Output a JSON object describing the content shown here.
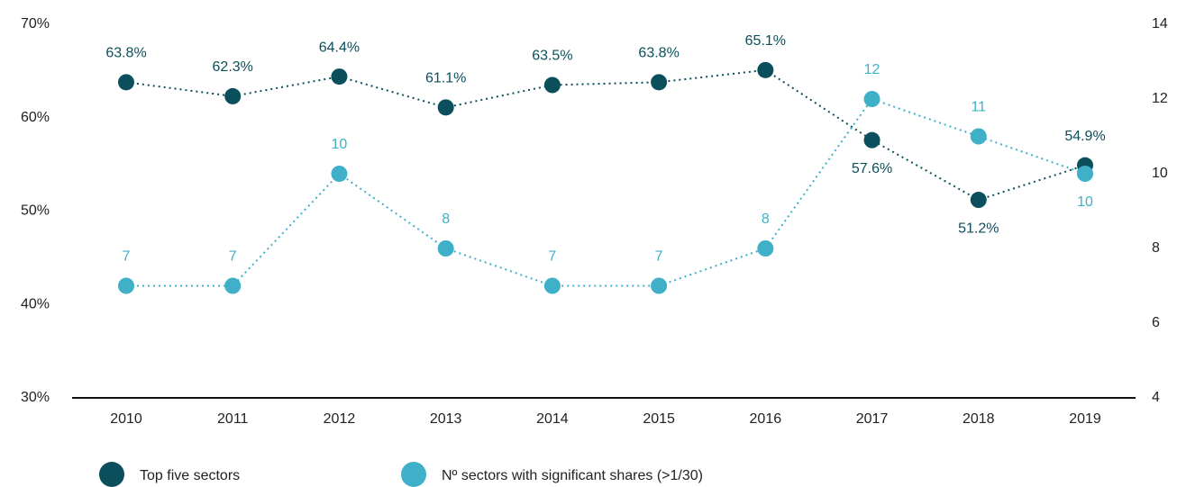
{
  "chart_data": {
    "type": "line",
    "categories": [
      "2010",
      "2011",
      "2012",
      "2013",
      "2014",
      "2015",
      "2016",
      "2017",
      "2018",
      "2019"
    ],
    "series": [
      {
        "name": "Top five sectors",
        "color": "#0b4f5c",
        "values": [
          63.8,
          62.3,
          64.4,
          61.1,
          63.5,
          63.8,
          65.1,
          57.6,
          51.2,
          54.9
        ],
        "value_labels": [
          "63.8%",
          "62.3%",
          "64.4%",
          "61.1%",
          "63.5%",
          "63.8%",
          "65.1%",
          "57.6%",
          "51.2%",
          "54.9%"
        ]
      },
      {
        "name": "Nº sectors with significant shares (>1/30)",
        "color": "#3fb0c8",
        "axis": "y2",
        "values": [
          7,
          7,
          10,
          8,
          7,
          7,
          8,
          12,
          11,
          10
        ]
      }
    ],
    "ylim": [
      30,
      70
    ],
    "yticks": [
      {
        "value": 30,
        "label": "30%"
      },
      {
        "value": 40,
        "label": "40%"
      },
      {
        "value": 50,
        "label": "50%"
      },
      {
        "value": 60,
        "label": "60%"
      },
      {
        "value": 70,
        "label": "70%"
      }
    ],
    "y2lim": [
      4,
      14
    ],
    "y2ticks": [
      4,
      6,
      8,
      10,
      12,
      14
    ],
    "legend": "bottom"
  }
}
